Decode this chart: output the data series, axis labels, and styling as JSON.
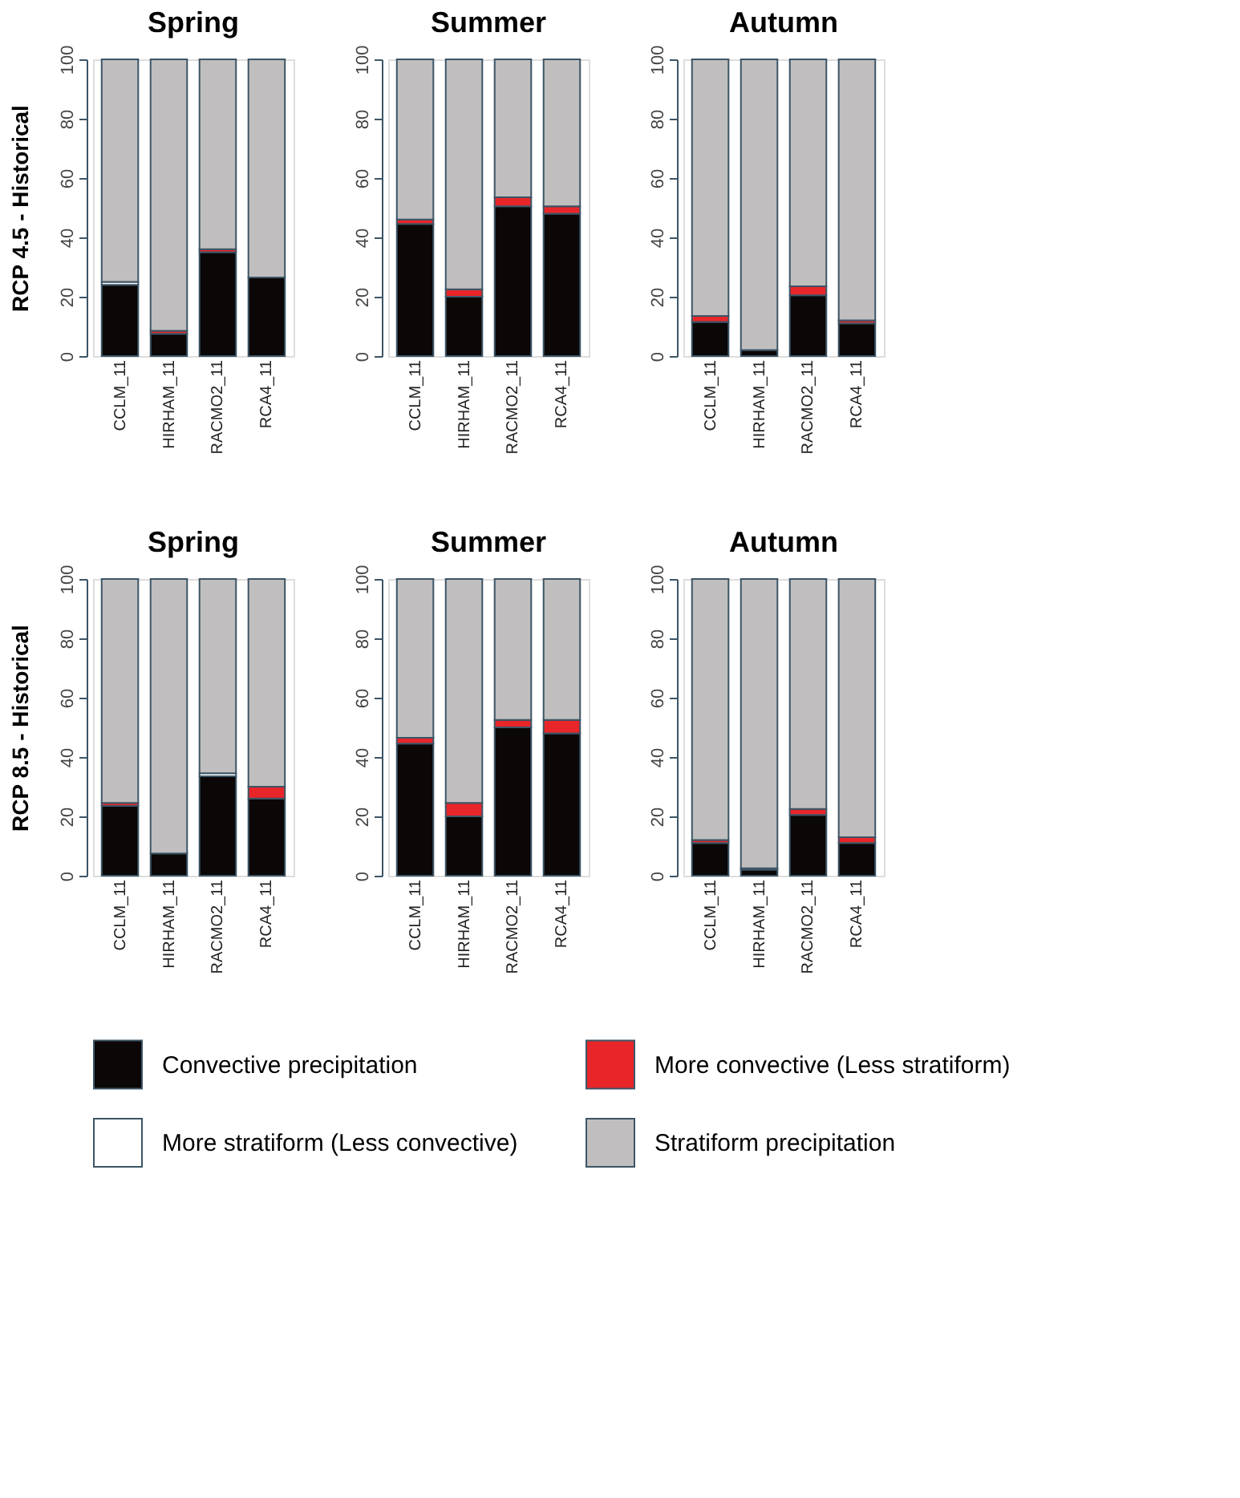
{
  "chart_data": [
    {
      "type": "bar",
      "title": "Spring",
      "ylabel": "RCP 4.5 - Historical",
      "categories": [
        "CCLM_11",
        "HIRHAM_11",
        "RACMO2_11",
        "RCA4_11"
      ],
      "stacked": true,
      "ylim": [
        0,
        100
      ],
      "yticks": [
        0,
        20,
        40,
        60,
        80,
        100
      ],
      "legend": "bottom",
      "series": [
        {
          "name": "Convective precipitation",
          "color": "#0a0706",
          "values": [
            24,
            7.5,
            35,
            26.5
          ]
        },
        {
          "name": "More convective (Less stratiform)",
          "color": "#e8262a",
          "values": [
            null,
            1,
            1,
            null
          ]
        },
        {
          "name": "More stratiform (Less convective)",
          "color": "#ffffff",
          "values": [
            1,
            null,
            null,
            null
          ]
        },
        {
          "name": "Stratiform precipitation",
          "color": "#c0bebe",
          "values": [
            75,
            91.5,
            64,
            73.5
          ]
        }
      ]
    },
    {
      "type": "bar",
      "title": "Summer",
      "categories": [
        "CCLM_11",
        "HIRHAM_11",
        "RACMO2_11",
        "RCA4_11"
      ],
      "stacked": true,
      "ylim": [
        0,
        100
      ],
      "yticks": [
        0,
        20,
        40,
        60,
        80,
        100
      ],
      "legend": "bottom",
      "series": [
        {
          "name": "Convective precipitation",
          "color": "#0a0706",
          "values": [
            44.5,
            20,
            50.5,
            48
          ]
        },
        {
          "name": "More convective (Less stratiform)",
          "color": "#e8262a",
          "values": [
            1.5,
            2.5,
            3,
            2.5
          ]
        },
        {
          "name": "More stratiform (Less convective)",
          "color": "#ffffff",
          "values": [
            null,
            null,
            null,
            null
          ]
        },
        {
          "name": "Stratiform precipitation",
          "color": "#c0bebe",
          "values": [
            54,
            77.5,
            46.5,
            49.5
          ]
        }
      ]
    },
    {
      "type": "bar",
      "title": "Autumn",
      "categories": [
        "CCLM_11",
        "HIRHAM_11",
        "RACMO2_11",
        "RCA4_11"
      ],
      "stacked": true,
      "ylim": [
        0,
        100
      ],
      "yticks": [
        0,
        20,
        40,
        60,
        80,
        100
      ],
      "legend": "bottom",
      "series": [
        {
          "name": "Convective precipitation",
          "color": "#0a0706",
          "values": [
            11.5,
            2,
            20.5,
            11
          ]
        },
        {
          "name": "More convective (Less stratiform)",
          "color": "#e8262a",
          "values": [
            2,
            null,
            3,
            1
          ]
        },
        {
          "name": "More stratiform (Less convective)",
          "color": "#ffffff",
          "values": [
            null,
            null,
            null,
            null
          ]
        },
        {
          "name": "Stratiform precipitation",
          "color": "#c0bebe",
          "values": [
            86.5,
            98,
            76.5,
            88
          ]
        }
      ]
    },
    {
      "type": "bar",
      "title": "Spring",
      "ylabel": "RCP 8.5 - Historical",
      "categories": [
        "CCLM_11",
        "HIRHAM_11",
        "RACMO2_11",
        "RCA4_11"
      ],
      "stacked": true,
      "ylim": [
        0,
        100
      ],
      "yticks": [
        0,
        20,
        40,
        60,
        80,
        100
      ],
      "legend": "bottom",
      "series": [
        {
          "name": "Convective precipitation",
          "color": "#0a0706",
          "values": [
            23.5,
            7.5,
            33.5,
            26
          ]
        },
        {
          "name": "More convective (Less stratiform)",
          "color": "#e8262a",
          "values": [
            1,
            null,
            null,
            4
          ]
        },
        {
          "name": "More stratiform (Less convective)",
          "color": "#ffffff",
          "values": [
            null,
            null,
            1,
            null
          ]
        },
        {
          "name": "Stratiform precipitation",
          "color": "#c0bebe",
          "values": [
            75.5,
            92.5,
            65.5,
            70
          ]
        }
      ]
    },
    {
      "type": "bar",
      "title": "Summer",
      "categories": [
        "CCLM_11",
        "HIRHAM_11",
        "RACMO2_11",
        "RCA4_11"
      ],
      "stacked": true,
      "ylim": [
        0,
        100
      ],
      "yticks": [
        0,
        20,
        40,
        60,
        80,
        100
      ],
      "legend": "bottom",
      "series": [
        {
          "name": "Convective precipitation",
          "color": "#0a0706",
          "values": [
            44.5,
            20,
            50,
            48
          ]
        },
        {
          "name": "More convective (Less stratiform)",
          "color": "#e8262a",
          "values": [
            2,
            4.5,
            2.5,
            4.5
          ]
        },
        {
          "name": "More stratiform (Less convective)",
          "color": "#ffffff",
          "values": [
            null,
            null,
            null,
            null
          ]
        },
        {
          "name": "Stratiform precipitation",
          "color": "#c0bebe",
          "values": [
            53.5,
            75.5,
            47.5,
            47.5
          ]
        }
      ]
    },
    {
      "type": "bar",
      "title": "Autumn",
      "categories": [
        "CCLM_11",
        "HIRHAM_11",
        "RACMO2_11",
        "RCA4_11"
      ],
      "stacked": true,
      "ylim": [
        0,
        100
      ],
      "yticks": [
        0,
        20,
        40,
        60,
        80,
        100
      ],
      "legend": "bottom",
      "series": [
        {
          "name": "Convective precipitation",
          "color": "#0a0706",
          "values": [
            11,
            2,
            20.5,
            11
          ]
        },
        {
          "name": "More convective (Less stratiform)",
          "color": "#e8262a",
          "values": [
            1,
            0.5,
            2,
            2
          ]
        },
        {
          "name": "More stratiform (Less convective)",
          "color": "#ffffff",
          "values": [
            null,
            null,
            null,
            null
          ]
        },
        {
          "name": "Stratiform precipitation",
          "color": "#c0bebe",
          "values": [
            88,
            97.5,
            77.5,
            87
          ]
        }
      ]
    }
  ]
}
